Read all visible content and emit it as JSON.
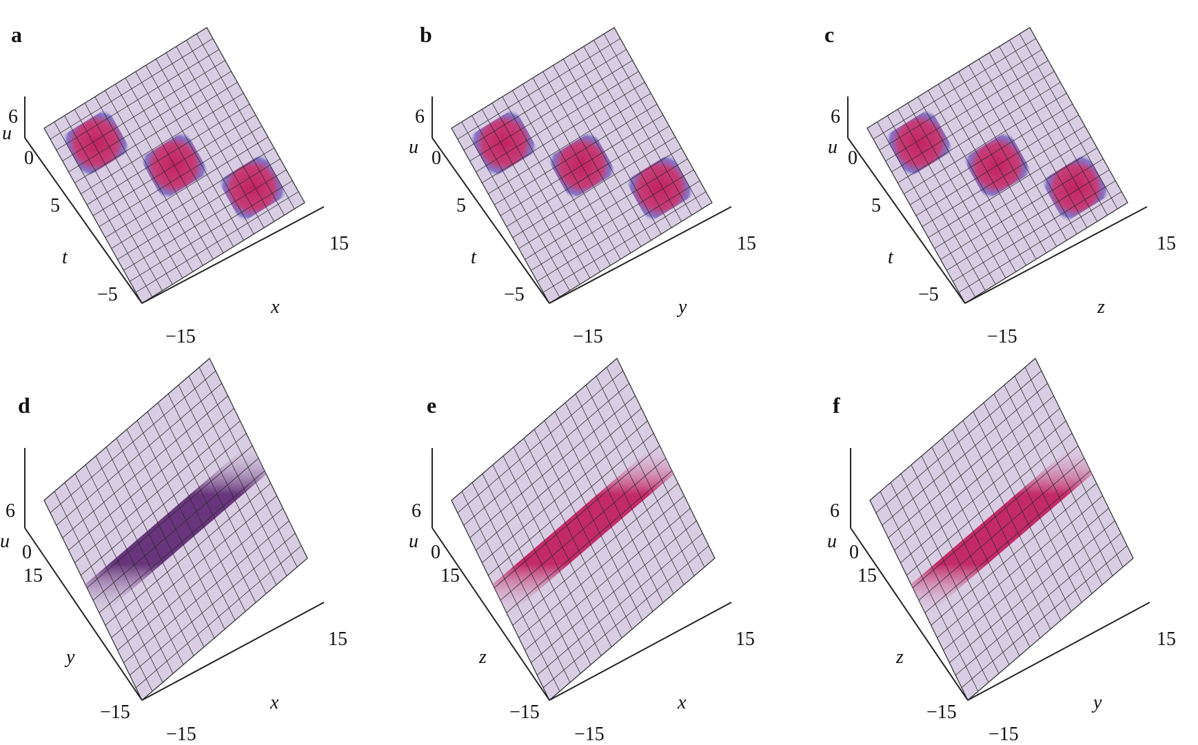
{
  "figure": {
    "panels": [
      {
        "id": "a",
        "label": "a",
        "type": "interleave",
        "plane": "xt",
        "axis_h": "x",
        "axis_d": "t",
        "axis_v": "u",
        "ticks": {
          "u_top": "6",
          "u_zero": "0",
          "d_a": "5",
          "d_b": "−5",
          "h_a": "−15",
          "h_b": "15"
        }
      },
      {
        "id": "b",
        "label": "b",
        "type": "interleave",
        "plane": "yt",
        "axis_h": "y",
        "axis_d": "t",
        "axis_v": "u",
        "ticks": {
          "u_top": "6",
          "u_zero": "0",
          "d_a": "5",
          "d_b": "−5",
          "h_a": "−15",
          "h_b": "15"
        }
      },
      {
        "id": "c",
        "label": "c",
        "type": "interleave",
        "plane": "zt",
        "axis_h": "z",
        "axis_d": "t",
        "axis_v": "u",
        "ticks": {
          "u_top": "6",
          "u_zero": "0",
          "d_a": "5",
          "d_b": "−5",
          "h_a": "−15",
          "h_b": "15"
        }
      },
      {
        "id": "d",
        "label": "d",
        "type": "ridge",
        "plane": "xy",
        "axis_h": "x",
        "axis_d": "y",
        "axis_v": "u",
        "ticks": {
          "u_top": "6",
          "u_zero": "0",
          "d_a": "15",
          "d_b": "−15",
          "h_a": "−15",
          "h_b": "15"
        }
      },
      {
        "id": "e",
        "label": "e",
        "type": "band",
        "plane": "xz",
        "axis_h": "x",
        "axis_d": "z",
        "axis_v": "u",
        "ticks": {
          "u_top": "6",
          "u_zero": "0",
          "d_a": "15",
          "d_b": "−15",
          "h_a": "−15",
          "h_b": "15"
        }
      },
      {
        "id": "f",
        "label": "f",
        "type": "band",
        "plane": "yz",
        "axis_h": "y",
        "axis_d": "z",
        "axis_v": "u",
        "ticks": {
          "u_top": "6",
          "u_zero": "0",
          "d_a": "15",
          "d_b": "−15",
          "h_a": "−15",
          "h_b": "15"
        }
      }
    ]
  },
  "colors": {
    "surface": "#d9cde3",
    "grid": "#2b2b2b",
    "magenta": "#c2185b",
    "purple": "#5b2470",
    "blue": "#4a3fb8",
    "axis": "#222222"
  }
}
